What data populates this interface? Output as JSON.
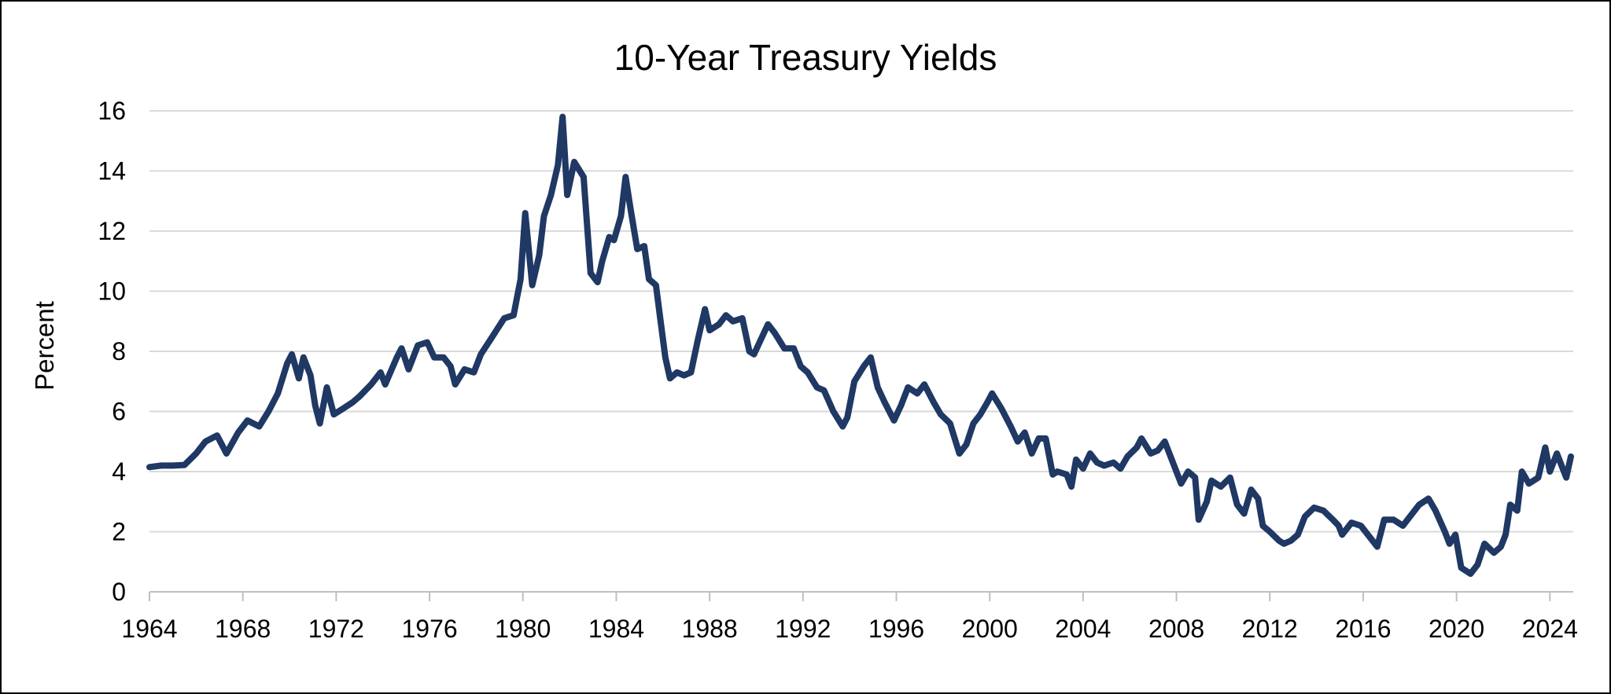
{
  "chart_data": {
    "type": "line",
    "title": "10-Year Treasury Yields",
    "ylabel": "Percent",
    "xlabel": "",
    "xlim": [
      1964,
      2025
    ],
    "ylim": [
      0,
      16
    ],
    "y_ticks": [
      "0",
      "2",
      "4",
      "6",
      "8",
      "10",
      "12",
      "14",
      "16"
    ],
    "x_ticks": [
      "1964",
      "1968",
      "1972",
      "1976",
      "1980",
      "1984",
      "1988",
      "1992",
      "1996",
      "2000",
      "2004",
      "2008",
      "2012",
      "2016",
      "2020",
      "2024"
    ],
    "grid": "horizontal",
    "legend": "none",
    "color": "#1f3864",
    "series": [
      {
        "points": [
          [
            1964.0,
            4.15
          ],
          [
            1964.5,
            4.2
          ],
          [
            1965.0,
            4.2
          ],
          [
            1965.5,
            4.22
          ],
          [
            1966.0,
            4.6
          ],
          [
            1966.4,
            5.0
          ],
          [
            1966.9,
            5.2
          ],
          [
            1967.3,
            4.6
          ],
          [
            1967.8,
            5.3
          ],
          [
            1968.2,
            5.7
          ],
          [
            1968.7,
            5.5
          ],
          [
            1969.1,
            6.0
          ],
          [
            1969.5,
            6.6
          ],
          [
            1969.9,
            7.6
          ],
          [
            1970.1,
            7.9
          ],
          [
            1970.4,
            7.1
          ],
          [
            1970.6,
            7.8
          ],
          [
            1970.9,
            7.2
          ],
          [
            1971.1,
            6.2
          ],
          [
            1971.3,
            5.6
          ],
          [
            1971.6,
            6.8
          ],
          [
            1971.9,
            5.9
          ],
          [
            1972.3,
            6.1
          ],
          [
            1972.7,
            6.3
          ],
          [
            1973.0,
            6.5
          ],
          [
            1973.5,
            6.9
          ],
          [
            1973.9,
            7.3
          ],
          [
            1974.1,
            6.9
          ],
          [
            1974.6,
            7.8
          ],
          [
            1974.8,
            8.1
          ],
          [
            1975.1,
            7.4
          ],
          [
            1975.5,
            8.2
          ],
          [
            1975.9,
            8.3
          ],
          [
            1976.2,
            7.8
          ],
          [
            1976.6,
            7.8
          ],
          [
            1976.9,
            7.5
          ],
          [
            1977.1,
            6.9
          ],
          [
            1977.5,
            7.4
          ],
          [
            1977.9,
            7.3
          ],
          [
            1978.2,
            7.9
          ],
          [
            1978.7,
            8.5
          ],
          [
            1979.2,
            9.1
          ],
          [
            1979.6,
            9.2
          ],
          [
            1979.9,
            10.4
          ],
          [
            1980.1,
            12.6
          ],
          [
            1980.4,
            10.2
          ],
          [
            1980.7,
            11.2
          ],
          [
            1980.9,
            12.5
          ],
          [
            1981.2,
            13.2
          ],
          [
            1981.5,
            14.2
          ],
          [
            1981.7,
            15.8
          ],
          [
            1981.9,
            13.2
          ],
          [
            1982.2,
            14.3
          ],
          [
            1982.6,
            13.8
          ],
          [
            1982.9,
            10.6
          ],
          [
            1983.2,
            10.3
          ],
          [
            1983.4,
            11.0
          ],
          [
            1983.7,
            11.8
          ],
          [
            1983.9,
            11.7
          ],
          [
            1984.2,
            12.5
          ],
          [
            1984.4,
            13.8
          ],
          [
            1984.6,
            12.8
          ],
          [
            1984.9,
            11.4
          ],
          [
            1985.2,
            11.5
          ],
          [
            1985.4,
            10.4
          ],
          [
            1985.7,
            10.2
          ],
          [
            1985.9,
            9.0
          ],
          [
            1986.1,
            7.8
          ],
          [
            1986.3,
            7.1
          ],
          [
            1986.6,
            7.3
          ],
          [
            1986.9,
            7.2
          ],
          [
            1987.2,
            7.3
          ],
          [
            1987.5,
            8.4
          ],
          [
            1987.8,
            9.4
          ],
          [
            1988.0,
            8.7
          ],
          [
            1988.4,
            8.9
          ],
          [
            1988.7,
            9.2
          ],
          [
            1989.0,
            9.0
          ],
          [
            1989.4,
            9.1
          ],
          [
            1989.7,
            8.0
          ],
          [
            1989.9,
            7.9
          ],
          [
            1990.2,
            8.4
          ],
          [
            1990.5,
            8.9
          ],
          [
            1990.8,
            8.6
          ],
          [
            1991.2,
            8.1
          ],
          [
            1991.6,
            8.1
          ],
          [
            1991.9,
            7.5
          ],
          [
            1992.2,
            7.3
          ],
          [
            1992.6,
            6.8
          ],
          [
            1992.9,
            6.7
          ],
          [
            1993.3,
            6.0
          ],
          [
            1993.7,
            5.5
          ],
          [
            1993.9,
            5.8
          ],
          [
            1994.2,
            7.0
          ],
          [
            1994.6,
            7.5
          ],
          [
            1994.9,
            7.8
          ],
          [
            1995.2,
            6.8
          ],
          [
            1995.5,
            6.3
          ],
          [
            1995.9,
            5.7
          ],
          [
            1996.2,
            6.2
          ],
          [
            1996.5,
            6.8
          ],
          [
            1996.9,
            6.6
          ],
          [
            1997.2,
            6.9
          ],
          [
            1997.6,
            6.3
          ],
          [
            1997.9,
            5.9
          ],
          [
            1998.3,
            5.6
          ],
          [
            1998.7,
            4.6
          ],
          [
            1999.0,
            4.9
          ],
          [
            1999.3,
            5.6
          ],
          [
            1999.6,
            5.9
          ],
          [
            1999.9,
            6.3
          ],
          [
            2000.1,
            6.6
          ],
          [
            2000.5,
            6.1
          ],
          [
            2000.9,
            5.5
          ],
          [
            2001.2,
            5.0
          ],
          [
            2001.5,
            5.3
          ],
          [
            2001.8,
            4.6
          ],
          [
            2002.1,
            5.1
          ],
          [
            2002.4,
            5.1
          ],
          [
            2002.7,
            3.9
          ],
          [
            2002.9,
            4.0
          ],
          [
            2003.3,
            3.9
          ],
          [
            2003.5,
            3.5
          ],
          [
            2003.7,
            4.4
          ],
          [
            2004.0,
            4.1
          ],
          [
            2004.3,
            4.6
          ],
          [
            2004.6,
            4.3
          ],
          [
            2004.9,
            4.2
          ],
          [
            2005.3,
            4.3
          ],
          [
            2005.6,
            4.1
          ],
          [
            2005.9,
            4.5
          ],
          [
            2006.3,
            4.8
          ],
          [
            2006.5,
            5.1
          ],
          [
            2006.9,
            4.6
          ],
          [
            2007.2,
            4.7
          ],
          [
            2007.5,
            5.0
          ],
          [
            2007.9,
            4.2
          ],
          [
            2008.2,
            3.6
          ],
          [
            2008.5,
            4.0
          ],
          [
            2008.8,
            3.8
          ],
          [
            2008.95,
            2.4
          ],
          [
            2009.3,
            3.0
          ],
          [
            2009.5,
            3.7
          ],
          [
            2009.9,
            3.5
          ],
          [
            2010.3,
            3.8
          ],
          [
            2010.6,
            2.9
          ],
          [
            2010.9,
            2.6
          ],
          [
            2011.2,
            3.4
          ],
          [
            2011.5,
            3.1
          ],
          [
            2011.7,
            2.2
          ],
          [
            2012.0,
            2.0
          ],
          [
            2012.4,
            1.7
          ],
          [
            2012.6,
            1.6
          ],
          [
            2012.9,
            1.7
          ],
          [
            2013.2,
            1.9
          ],
          [
            2013.5,
            2.5
          ],
          [
            2013.9,
            2.8
          ],
          [
            2014.3,
            2.7
          ],
          [
            2014.7,
            2.4
          ],
          [
            2014.95,
            2.2
          ],
          [
            2015.1,
            1.9
          ],
          [
            2015.5,
            2.3
          ],
          [
            2015.9,
            2.2
          ],
          [
            2016.3,
            1.8
          ],
          [
            2016.6,
            1.5
          ],
          [
            2016.9,
            2.4
          ],
          [
            2017.3,
            2.4
          ],
          [
            2017.7,
            2.2
          ],
          [
            2018.0,
            2.5
          ],
          [
            2018.4,
            2.9
          ],
          [
            2018.8,
            3.1
          ],
          [
            2019.1,
            2.7
          ],
          [
            2019.5,
            2.0
          ],
          [
            2019.7,
            1.6
          ],
          [
            2019.95,
            1.9
          ],
          [
            2020.2,
            0.8
          ],
          [
            2020.6,
            0.6
          ],
          [
            2020.9,
            0.9
          ],
          [
            2021.2,
            1.6
          ],
          [
            2021.6,
            1.3
          ],
          [
            2021.9,
            1.5
          ],
          [
            2022.1,
            1.9
          ],
          [
            2022.3,
            2.9
          ],
          [
            2022.6,
            2.7
          ],
          [
            2022.8,
            4.0
          ],
          [
            2023.1,
            3.6
          ],
          [
            2023.5,
            3.8
          ],
          [
            2023.8,
            4.8
          ],
          [
            2024.0,
            4.0
          ],
          [
            2024.3,
            4.6
          ],
          [
            2024.7,
            3.8
          ],
          [
            2024.9,
            4.5
          ]
        ]
      }
    ]
  }
}
